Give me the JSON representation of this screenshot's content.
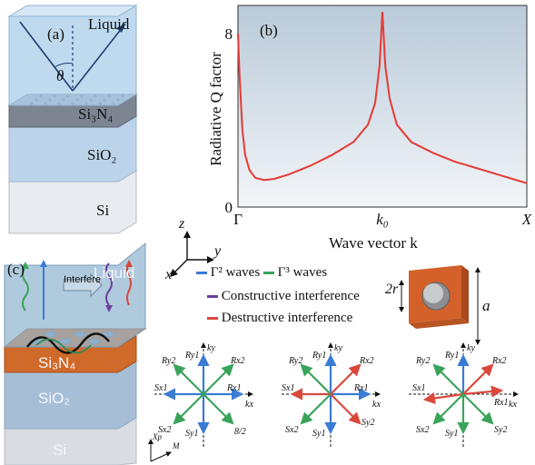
{
  "panel_a": {
    "label": "(a)",
    "liquid": "Liquid",
    "theta": "θ",
    "layers": [
      "Si₃N₄",
      "SiO₂",
      "Si"
    ]
  },
  "panel_b": {
    "label": "(b)"
  },
  "chart_data": {
    "type": "line",
    "ylabel": "Radiative Q factor",
    "xlabel": "Wave vector k",
    "x_ticks": [
      "Γ",
      "k₀",
      "X"
    ],
    "y_ticks": [
      "0",
      "8"
    ],
    "ylim": [
      0,
      8
    ],
    "xlim": [
      0,
      2
    ],
    "grid": false,
    "series": [
      {
        "color": "#e63a35",
        "x": [
          0,
          0.01,
          0.03,
          0.05,
          0.08,
          0.12,
          0.18,
          0.25,
          0.35,
          0.5,
          0.65,
          0.8,
          0.9,
          0.95,
          0.98,
          1.0,
          1.02,
          1.05,
          1.1,
          1.2,
          1.35,
          1.5,
          1.65,
          1.8,
          1.9,
          2.0
        ],
        "values": [
          8.0,
          6.2,
          3.6,
          2.4,
          1.7,
          1.35,
          1.25,
          1.3,
          1.5,
          1.9,
          2.4,
          3.0,
          3.8,
          4.8,
          6.5,
          9.0,
          6.5,
          5.0,
          3.8,
          3.0,
          2.5,
          2.1,
          1.8,
          1.5,
          1.3,
          1.1
        ]
      }
    ]
  },
  "panel_c": {
    "label": "(c)",
    "liquid": "Liquid",
    "interfere": "Interfere",
    "layers": [
      "Si₃N₄",
      "SiO₂",
      "Si"
    ],
    "axes": {
      "z": "z",
      "y": "y",
      "x": "x"
    },
    "legend": {
      "gamma2": "Γ² waves",
      "gamma3": "Γ³ waves",
      "constructive": "Constructive interference",
      "destructive": "Destructive interference"
    },
    "colors": {
      "blue": "#3a7bd5",
      "green": "#3aa35a",
      "purple": "#6a3fa0",
      "red": "#d9483b"
    },
    "unit_cell": {
      "r": "2r",
      "a": "a"
    },
    "diagram_labels": {
      "ky": "ky",
      "kx": "kx",
      "Ry1": "Ry1",
      "Ry2": "Ry2",
      "Rx1": "Rx1",
      "Rx2": "Rx2",
      "Sx1": "Sx1",
      "Sx2": "Sx2",
      "Sy1": "Sy1",
      "Sy2": "Sy2",
      "s82": "8/2",
      "Xp": "Xp",
      "M": "M"
    }
  }
}
